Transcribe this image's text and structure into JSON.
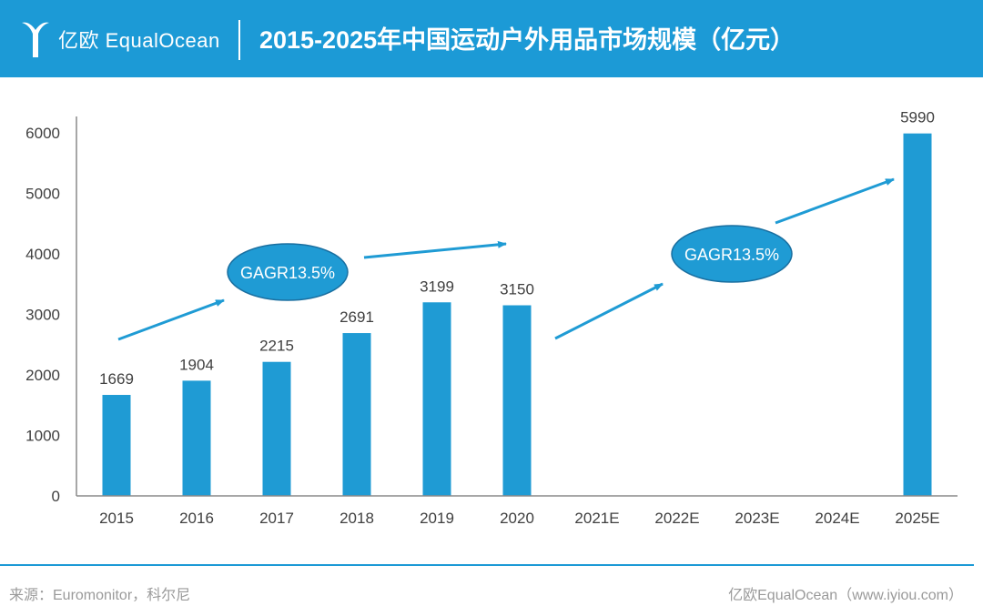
{
  "header": {
    "logo_text": "亿欧 EqualOcean",
    "title": "2015-2025年中国运动户外用品市场规模（亿元）"
  },
  "colors": {
    "brand": "#1c9ad6",
    "bar": "#1f9bd4",
    "text": "#404040",
    "axis": "#8a8a8a"
  },
  "icons": {
    "logo": "equalocean-logo-icon"
  },
  "chart_data": {
    "type": "bar",
    "categories": [
      "2015",
      "2016",
      "2017",
      "2018",
      "2019",
      "2020",
      "2021E",
      "2022E",
      "2023E",
      "2024E",
      "2025E"
    ],
    "values": [
      1669,
      1904,
      2215,
      2691,
      3199,
      3150,
      null,
      null,
      null,
      null,
      5990
    ],
    "data_labels": [
      "1669",
      "1904",
      "2215",
      "2691",
      "3199",
      "3150",
      "",
      "",
      "",
      "",
      "5990"
    ],
    "yticks": [
      0,
      1000,
      2000,
      3000,
      4000,
      5000,
      6000
    ],
    "ylim": [
      0,
      6500
    ],
    "grid": false,
    "title": "",
    "xlabel": "",
    "ylabel": "",
    "annotations": [
      {
        "text": "GAGR13.5%",
        "type": "ellipse-callout",
        "near": "2016-2017"
      },
      {
        "text": "GAGR13.5%",
        "type": "ellipse-callout",
        "near": "2023E"
      }
    ]
  },
  "footer": {
    "source": "来源：Euromonitor，科尔尼",
    "credit": "亿欧EqualOcean（www.iyiou.com）"
  }
}
